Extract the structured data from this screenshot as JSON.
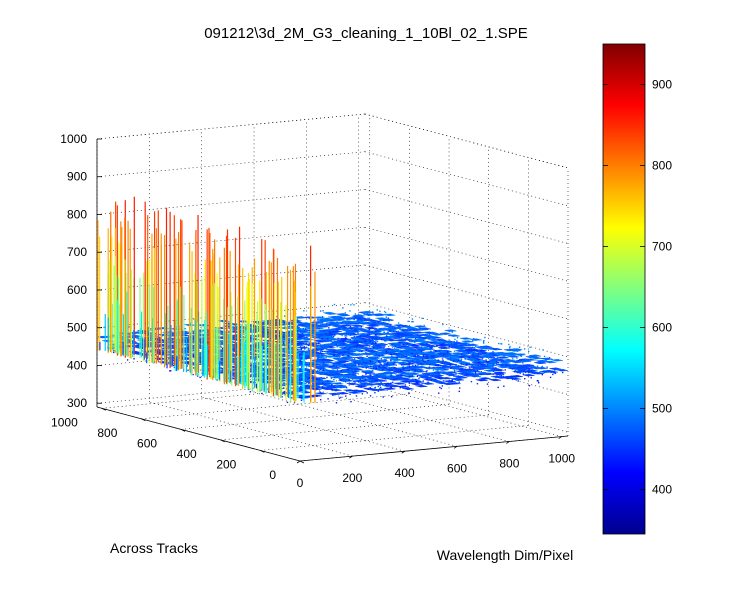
{
  "chart_data": {
    "type": "surface",
    "title": "091212\\3d_2M_G3_cleaning_1_10Bl_02_1.SPE",
    "xlabel": "Wavelength Dim/Pixel",
    "ylabel": "Across Tracks",
    "zlabel": "",
    "x_ticks": [
      "0",
      "200",
      "400",
      "600",
      "800",
      "1000"
    ],
    "y_ticks": [
      "0",
      "200",
      "400",
      "600",
      "800",
      "1000"
    ],
    "z_ticks": [
      "300",
      "400",
      "500",
      "600",
      "700",
      "800",
      "900",
      "1000"
    ],
    "xlim": [
      0,
      1024
    ],
    "ylim": [
      0,
      1024
    ],
    "zlim": [
      290,
      1000
    ],
    "grid": true,
    "surface": {
      "baseline_intensity": 470,
      "noise_amplitude": 40,
      "spiky_region": {
        "x_range": [
          0,
          60
        ],
        "y_range": [
          0,
          1024
        ],
        "spike_min": 600,
        "spike_max": 860
      }
    },
    "colorbar": {
      "colormap": "jet",
      "range": [
        345,
        950
      ],
      "ticks": [
        "400",
        "500",
        "600",
        "700",
        "800",
        "900"
      ],
      "placement": "right"
    }
  }
}
